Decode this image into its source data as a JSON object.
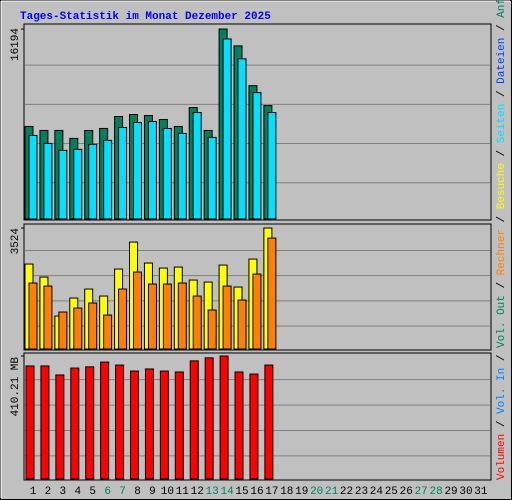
{
  "chart_data": [
    {
      "type": "bar",
      "title": "Tages-Statistik im Monat Dezember 2025",
      "categories": [
        "1",
        "2",
        "3",
        "4",
        "5",
        "6",
        "7",
        "8",
        "9",
        "10",
        "11",
        "12",
        "13",
        "14",
        "15",
        "16",
        "17",
        "18",
        "19",
        "20",
        "21",
        "22",
        "23",
        "24",
        "25",
        "26",
        "27",
        "28",
        "29",
        "30",
        "31"
      ],
      "category_colors": [
        "#000000",
        "#000000",
        "#000000",
        "#000000",
        "#000000",
        "#00805c",
        "#00805c",
        "#000000",
        "#000000",
        "#000000",
        "#000000",
        "#000000",
        "#00805c",
        "#00805c",
        "#000000",
        "#000000",
        "#000000",
        "#000000",
        "#000000",
        "#00805c",
        "#00805c",
        "#000000",
        "#000000",
        "#000000",
        "#000000",
        "#000000",
        "#00805c",
        "#00805c",
        "#000000",
        "#000000",
        "#000000"
      ],
      "ylim": [
        0,
        16194
      ],
      "yticks": [
        16194
      ],
      "series": [
        {
          "name": "Anfragen",
          "color": "#00805c",
          "values": [
            7886,
            7547,
            7547,
            6869,
            7547,
            7717,
            8734,
            8904,
            8819,
            8480,
            7886,
            9498,
            7547,
            16194,
            14755,
            11363,
            9667,
            null,
            null,
            null,
            null,
            null,
            null,
            null,
            null,
            null,
            null,
            null,
            null,
            null,
            null
          ]
        },
        {
          "name": "Dateien",
          "color": "#0040ff"
        },
        {
          "name": "Seiten",
          "color": "#00e0ff",
          "values": [
            7123,
            6445,
            5851,
            5936,
            6360,
            6699,
            7802,
            8226,
            8310,
            7717,
            7293,
            9074,
            6954,
            15349,
            13653,
            10770,
            9074,
            null,
            null,
            null,
            null,
            null,
            null,
            null,
            null,
            null,
            null,
            null,
            null,
            null,
            null
          ]
        }
      ]
    },
    {
      "type": "bar",
      "ylim": [
        0,
        3524
      ],
      "yticks": [
        3524
      ],
      "series": [
        {
          "name": "Besuche",
          "color": "#ffff00",
          "values": [
            2474,
            2095,
            960,
            1484,
            1746,
            1542,
            2328,
            3114,
            2503,
            2357,
            2386,
            2008,
            1950,
            2444,
            1804,
            2619,
            3524,
            null,
            null,
            null,
            null,
            null,
            null,
            null,
            null,
            null,
            null,
            null,
            null,
            null,
            null
          ]
        },
        {
          "name": "Rechner",
          "color": "#ff8000",
          "values": [
            1921,
            1833,
            1077,
            1193,
            1339,
            989,
            1746,
            2241,
            1892,
            1892,
            1921,
            1542,
            1135,
            1833,
            1426,
            2183,
            3230,
            null,
            null,
            null,
            null,
            null,
            null,
            null,
            null,
            null,
            null,
            null,
            null,
            null,
            null
          ]
        }
      ]
    },
    {
      "type": "bar",
      "ylim": [
        0,
        410.21
      ],
      "yticks": [
        {
          "value": 410.21,
          "label": "410.21 MB"
        }
      ],
      "series": [
        {
          "name": "Volumen",
          "color": "#ff0000",
          "values": [
            377,
            377,
            347,
            370,
            374,
            390,
            380,
            360,
            367,
            360,
            357,
            394,
            404,
            410.21,
            357,
            350,
            380,
            null,
            null,
            null,
            null,
            null,
            null,
            null,
            null,
            null,
            null,
            null,
            null,
            null,
            null
          ]
        },
        {
          "name": "Vol. In",
          "color": "#0080ff"
        },
        {
          "name": "Vol. Out",
          "color": "#00805c"
        }
      ]
    }
  ]
}
